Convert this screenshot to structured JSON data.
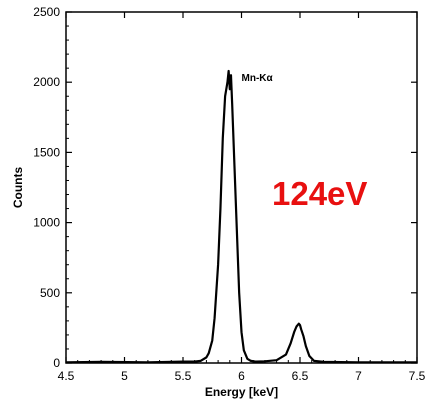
{
  "chart_data": {
    "type": "line",
    "title": "",
    "xlabel": "Energy [keV]",
    "ylabel": "Counts",
    "xlim": [
      4.5,
      7.5
    ],
    "ylim": [
      0,
      2500
    ],
    "xticks": [
      "4.5",
      "5",
      "5.5",
      "6",
      "6.5",
      "7",
      "7.5"
    ],
    "yticks": [
      "0",
      "500",
      "1000",
      "1500",
      "2000",
      "2500"
    ],
    "grid": false,
    "series": [
      {
        "color": "#000000",
        "x": [
          4.5,
          4.8,
          5.2,
          5.5,
          5.6,
          5.65,
          5.7,
          5.72,
          5.75,
          5.77,
          5.8,
          5.82,
          5.84,
          5.86,
          5.88,
          5.89,
          5.9,
          5.91,
          5.92,
          5.94,
          5.96,
          5.98,
          6.0,
          6.02,
          6.05,
          6.08,
          6.12,
          6.2,
          6.3,
          6.38,
          6.42,
          6.45,
          6.47,
          6.49,
          6.5,
          6.51,
          6.53,
          6.55,
          6.58,
          6.62,
          6.7,
          7.0,
          7.5
        ],
        "y": [
          5,
          8,
          5,
          10,
          10,
          15,
          40,
          70,
          160,
          320,
          700,
          1100,
          1600,
          1900,
          2000,
          2080,
          1950,
          2050,
          1850,
          1400,
          950,
          500,
          220,
          90,
          30,
          15,
          10,
          12,
          20,
          60,
          140,
          220,
          260,
          280,
          270,
          240,
          190,
          120,
          50,
          15,
          8,
          5,
          5
        ]
      }
    ],
    "annotations": [
      {
        "text": "Mn-Kα",
        "x": 6.0,
        "y": 2010
      }
    ]
  },
  "overlay": {
    "resolution_label": "124eV",
    "resolution_color": "#e81010"
  }
}
